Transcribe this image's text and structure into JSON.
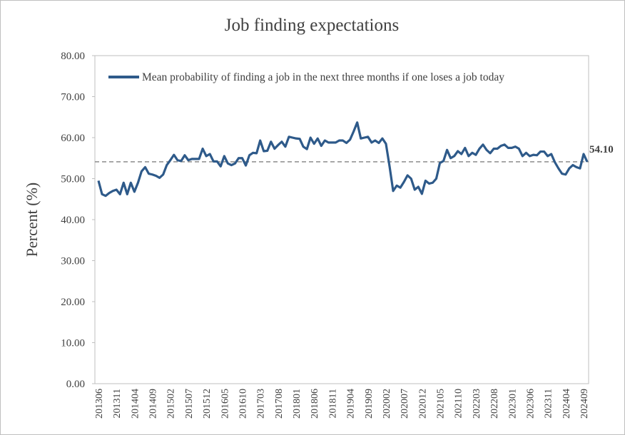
{
  "chart_data": {
    "type": "line",
    "title": "Job finding expectations",
    "y_label": "Percent (%)",
    "categories": [
      "201306",
      null,
      null,
      null,
      null,
      "201311",
      null,
      null,
      null,
      null,
      "201404",
      null,
      null,
      null,
      null,
      "201409",
      null,
      null,
      null,
      null,
      "201502",
      null,
      null,
      null,
      null,
      "201507",
      null,
      null,
      null,
      null,
      "201512",
      null,
      null,
      null,
      null,
      "201605",
      null,
      null,
      null,
      null,
      "201610",
      null,
      null,
      null,
      null,
      "201703",
      null,
      null,
      null,
      null,
      "201708",
      null,
      null,
      null,
      null,
      "201801",
      null,
      null,
      null,
      null,
      "201806",
      null,
      null,
      null,
      null,
      "201811",
      null,
      null,
      null,
      null,
      "201904",
      null,
      null,
      null,
      null,
      "201909",
      null,
      null,
      null,
      null,
      "202002",
      null,
      null,
      null,
      null,
      "202007",
      null,
      null,
      null,
      null,
      "202012",
      null,
      null,
      null,
      null,
      "202105",
      null,
      null,
      null,
      null,
      "202110",
      null,
      null,
      null,
      null,
      "202203",
      null,
      null,
      null,
      null,
      "202208",
      null,
      null,
      null,
      null,
      "202301",
      null,
      null,
      null,
      null,
      "202306",
      null,
      null,
      null,
      null,
      "202311",
      null,
      null,
      null,
      null,
      "202404",
      null,
      null,
      null,
      null,
      "202409",
      null
    ],
    "series": [
      {
        "name": "Mean probability of finding a job in the next three months if one loses a job today",
        "color": "#2e5a8a",
        "values": [
          49.5,
          46.2,
          45.8,
          46.5,
          47,
          47.3,
          46.2,
          49,
          46.2,
          49,
          46.8,
          49,
          51.8,
          52.8,
          51.2,
          51,
          50.7,
          50.2,
          51,
          53.3,
          54.5,
          55.8,
          54.5,
          54.3,
          55.7,
          54.5,
          54.8,
          54.8,
          54.8,
          57.3,
          55.5,
          56,
          54.2,
          54.2,
          53,
          55.5,
          53.7,
          53.3,
          53.7,
          55,
          55,
          53.2,
          55.7,
          56.3,
          56.2,
          59.3,
          56.7,
          56.8,
          59,
          57.3,
          58.2,
          59,
          57.8,
          60.2,
          60,
          59.8,
          59.7,
          57.8,
          57.2,
          60,
          58.5,
          59.8,
          58,
          59.3,
          58.8,
          58.8,
          58.8,
          59.3,
          59.3,
          58.7,
          59.5,
          61.5,
          63.7,
          59.8,
          60,
          60.2,
          58.8,
          59.3,
          58.7,
          59.8,
          58.5,
          53,
          47,
          48.3,
          47.8,
          49.2,
          50.8,
          50,
          47.3,
          48,
          46.3,
          49.5,
          48.8,
          49,
          50,
          53.8,
          54.3,
          57,
          55,
          55.5,
          56.7,
          56,
          57.5,
          55.5,
          56.3,
          55.8,
          57.3,
          58.3,
          57,
          56.2,
          57.3,
          57.3,
          58,
          58.3,
          57.5,
          57.5,
          57.8,
          57.3,
          55.5,
          56.3,
          55.5,
          55.8,
          55.7,
          56.6,
          56.6,
          55.5,
          56,
          54,
          52.5,
          51.2,
          51,
          52.5,
          53.3,
          52.8,
          52.5,
          56,
          54.1
        ]
      }
    ],
    "reference_line": {
      "value": 54.1,
      "label": "54.10",
      "color": "#8c8c8c"
    },
    "ylim": [
      0,
      80
    ],
    "yticks": [
      {
        "value": 0,
        "label": "0.00"
      },
      {
        "value": 10,
        "label": "10.00"
      },
      {
        "value": 20,
        "label": "20.00"
      },
      {
        "value": 30,
        "label": "30.00"
      },
      {
        "value": 40,
        "label": "40.00"
      },
      {
        "value": 50,
        "label": "50.00"
      },
      {
        "value": 60,
        "label": "60.00"
      },
      {
        "value": 70,
        "label": "70.00"
      },
      {
        "value": 80,
        "label": "80.00"
      }
    ],
    "grid": false,
    "legend": "top"
  }
}
